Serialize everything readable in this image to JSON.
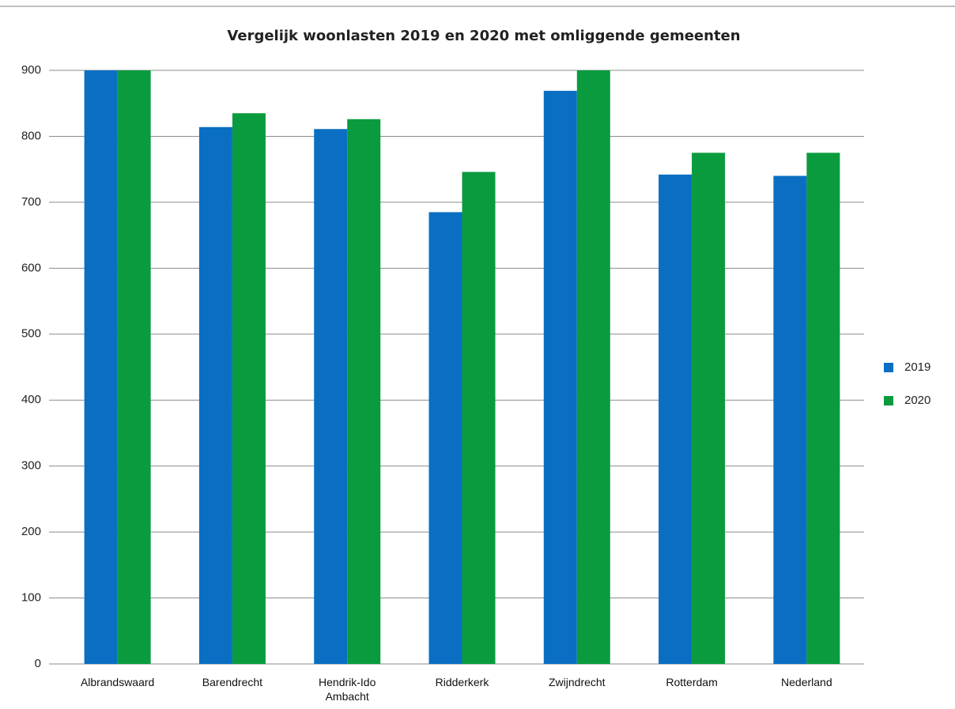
{
  "chart_data": {
    "type": "bar",
    "title": "Vergelijk woonlasten 2019 en 2020 met omliggende gemeenten",
    "categories": [
      "Albrandswaard",
      "Barendrecht",
      "Hendrik-Ido Ambacht",
      "Ridderkerk",
      "Zwijndrecht",
      "Rotterdam",
      "Nederland"
    ],
    "series": [
      {
        "name": "2019",
        "color": "#0a6fc2",
        "values": [
          900,
          814,
          811,
          685,
          869,
          742,
          740
        ]
      },
      {
        "name": "2020",
        "color": "#0a9b3e",
        "values": [
          900,
          835,
          826,
          746,
          900,
          775,
          775
        ]
      }
    ],
    "ylim": [
      0,
      900
    ],
    "yticks": [
      0,
      100,
      200,
      300,
      400,
      500,
      600,
      700,
      800,
      900
    ],
    "grid": true,
    "legend": "right"
  }
}
